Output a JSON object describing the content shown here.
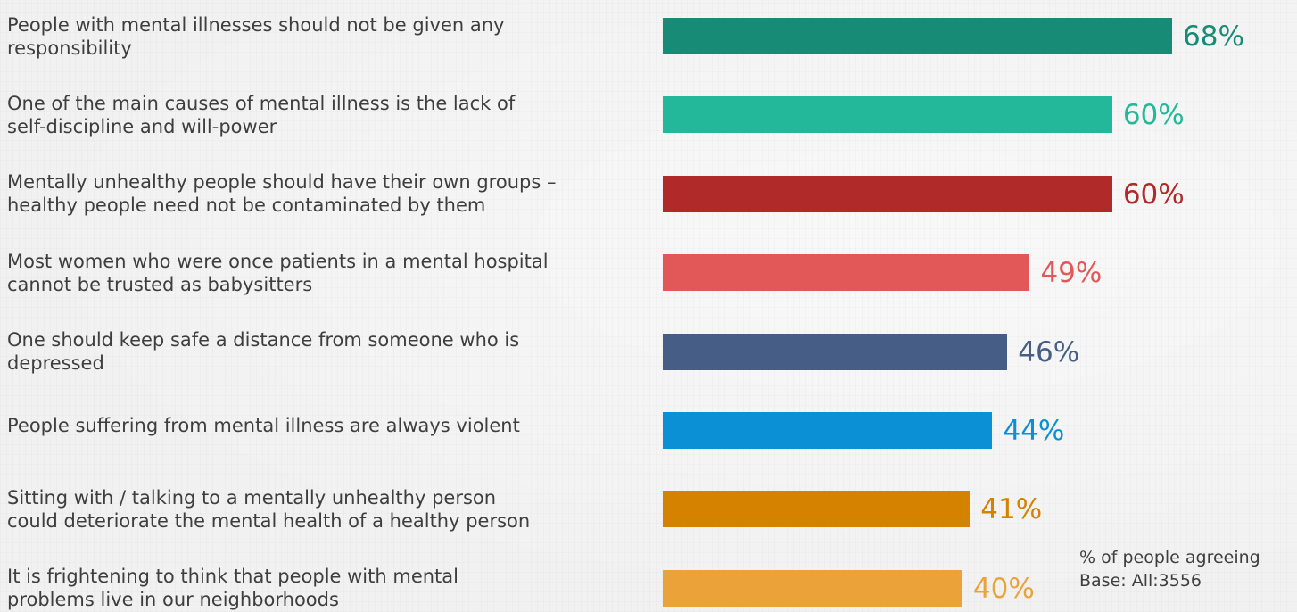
{
  "chart_data": {
    "type": "bar",
    "orientation": "horizontal",
    "categories": [
      "People with mental illnesses should not be given any\nresponsibility",
      "One of the main causes of mental illness is the lack of\nself-discipline and will-power",
      "Mentally unhealthy people should have their own groups –\nhealthy people need not be contaminated by them",
      "Most women who were once patients in a mental hospital\ncannot be trusted as babysitters",
      "One should keep safe a distance from someone who is\ndepressed",
      "People suffering from mental illness are always violent",
      "Sitting with / talking to a mentally unhealthy person\ncould deteriorate the mental health of a healthy person",
      "It is frightening to think that people with  mental\nproblems live in our neighborhoods"
    ],
    "values": [
      68,
      60,
      60,
      49,
      46,
      44,
      41,
      40
    ],
    "value_labels": [
      "68%",
      "60%",
      "60%",
      "49%",
      "46%",
      "44%",
      "41%",
      "40%"
    ],
    "colors": [
      "#178b76",
      "#23b899",
      "#b02a29",
      "#e25858",
      "#465d85",
      "#0b8fd5",
      "#d48200",
      "#eba239"
    ],
    "grid": false,
    "legend": false,
    "title": "",
    "xlabel": "",
    "ylabel": ""
  },
  "note": {
    "line1": "% of people agreeing",
    "line2": "Base: All:3556"
  }
}
